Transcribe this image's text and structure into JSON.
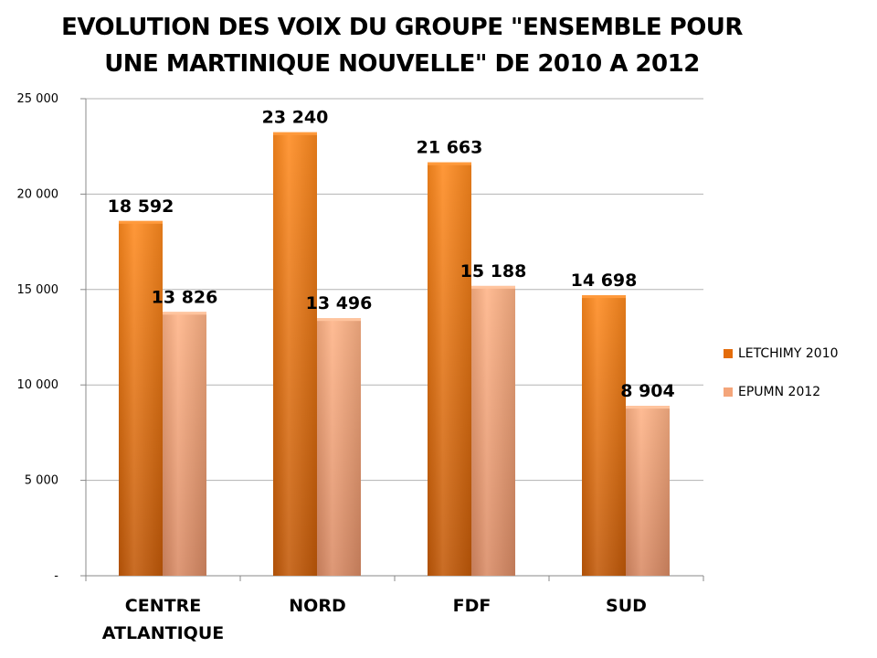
{
  "chart_data": {
    "type": "bar",
    "title_lines": [
      "EVOLUTION DES VOIX DU GROUPE \"ENSEMBLE POUR",
      "UNE MARTINIQUE NOUVELLE\" DE 2010 A 2012"
    ],
    "categories": [
      [
        "CENTRE",
        "ATLANTIQUE"
      ],
      [
        "NORD"
      ],
      [
        "FDF"
      ],
      [
        "SUD"
      ]
    ],
    "series": [
      {
        "name": "LETCHIMY 2010",
        "values": [
          18592,
          23240,
          21663,
          14698
        ],
        "labels": [
          "18 592",
          "23 240",
          "21 663",
          "14 698"
        ],
        "color": "#e46c0a"
      },
      {
        "name": "EPUMN 2012",
        "values": [
          13826,
          13496,
          15188,
          8904
        ],
        "labels": [
          "13 826",
          "13 496",
          "15 188",
          "8 904"
        ],
        "color": "#f4a57a"
      }
    ],
    "yticks": [
      "-",
      "5 000",
      "10 000",
      "15 000",
      "20 000",
      "25 000"
    ],
    "ylim": [
      0,
      25000
    ],
    "grid": true,
    "legend_position": "right"
  }
}
